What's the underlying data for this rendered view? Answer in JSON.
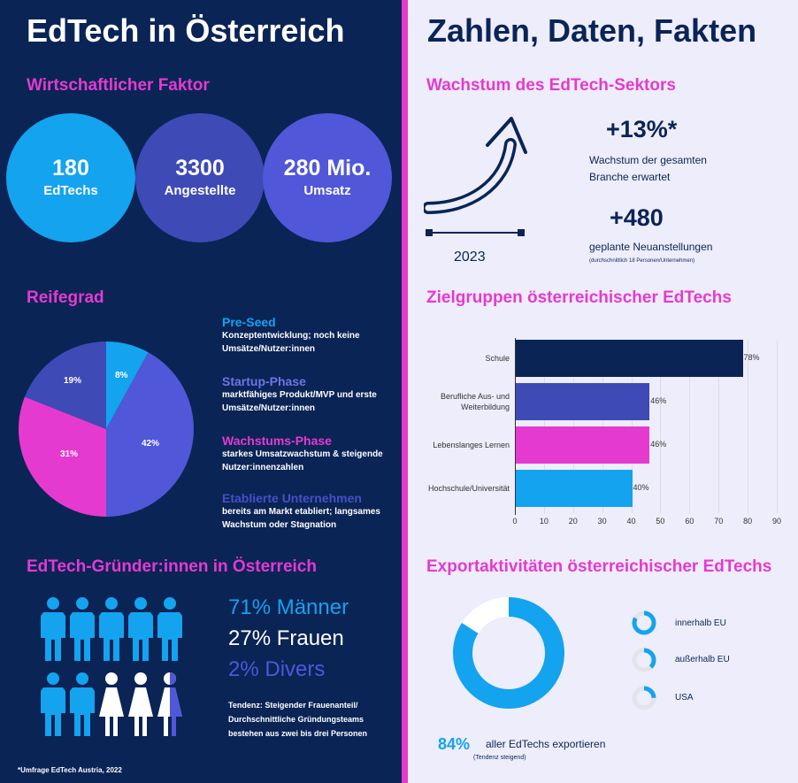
{
  "left_title": "EdTech in Österreich",
  "right_title": "Zahlen, Daten, Fakten",
  "wirtschaft": {
    "title": "Wirtschaftlicher Faktor",
    "items": [
      {
        "value": "180",
        "label": "EdTechs"
      },
      {
        "value": "3300",
        "label": "Angestellte"
      },
      {
        "value": "280 Mio.",
        "label": "Umsatz"
      }
    ]
  },
  "reifegrad": {
    "title": "Reifegrad",
    "legend": [
      {
        "title": "Pre-Seed",
        "desc": "Konzeptentwicklung; noch keine Umsätze/Nutzer:innen"
      },
      {
        "title": "Startup-Phase",
        "desc": "marktfähiges Produkt/MVP und erste Umsätze/Nutzer:innen"
      },
      {
        "title": "Wachstums-Phase",
        "desc": "starkes Umsatzwachstum & steigende Nutzer:innenzahlen"
      },
      {
        "title": "Etablierte Unternehmen",
        "desc": "bereits am Markt etabliert; langsames Wachstum oder Stagnation"
      }
    ]
  },
  "gruender": {
    "title": "EdTech-Gründer:innen in Österreich",
    "maenner": "71% Männer",
    "frauen": "27% Frauen",
    "divers": "2% Divers",
    "tendenz": "Tendenz: Steigender Frauenanteil/ Durchschnittliche Gründungsteams bestehen aus zwei bis drei Personen"
  },
  "footnote": "*Umfrage EdTech Austria, 2022",
  "wachstum": {
    "title": "Wachstum des EdTech-Sektors",
    "year": "2023",
    "stat1_value": "+13%*",
    "stat1_label": "Wachstum der gesamten Branche erwartet",
    "stat2_value": "+480",
    "stat2_label": "geplante Neuanstellungen",
    "stat2_note": "(durchschnittlich 18 Personen/Unternehmen)"
  },
  "zielgruppen_title": "Zielgruppen österreichischer EdTechs",
  "export": {
    "title": "Exportaktivitäten österreichischer EdTechs",
    "percent": "84%",
    "label": "aller EdTechs exportieren",
    "note": "(Tendenz steigend)",
    "legend": [
      {
        "label": "innerhalb EU"
      },
      {
        "label": "außerhalb EU"
      },
      {
        "label": "USA"
      }
    ]
  },
  "colors": {
    "navy": "#0a2456",
    "pink": "#e53ad0",
    "cyan": "#14a3ee",
    "indigo": "#3e4ab5",
    "periwinkle": "#5057d8"
  },
  "chart_data": [
    {
      "type": "pie",
      "labels": [
        "Pre-Seed",
        "Startup-Phase",
        "Wachstums-Phase",
        "Etablierte Unternehmen"
      ],
      "values": [
        8,
        42,
        31,
        19
      ],
      "value_labels": [
        "8%",
        "42%",
        "31%",
        "19%"
      ],
      "colors": [
        "#14a3ee",
        "#5057d8",
        "#e53ad0",
        "#3e4ab5"
      ]
    },
    {
      "type": "bar",
      "orientation": "horizontal",
      "categories": [
        "Schule",
        "Berufliche Aus- und Weiterbildung",
        "Lebenslanges Lernen",
        "Hochschule/Universität"
      ],
      "values": [
        78,
        46,
        46,
        40
      ],
      "value_labels": [
        "78%",
        "46%",
        "46%",
        "40%"
      ],
      "colors": [
        "#0a2456",
        "#3e4ab5",
        "#e53ad0",
        "#14a3ee"
      ],
      "xlim": [
        0,
        90
      ],
      "xticks": [
        "0",
        "10",
        "20",
        "30",
        "40",
        "50",
        "60",
        "70",
        "80",
        "90"
      ]
    },
    {
      "type": "pie",
      "variant": "donut",
      "values": [
        84,
        16
      ],
      "colors": [
        "#14a3ee",
        "#ffffff"
      ]
    }
  ]
}
